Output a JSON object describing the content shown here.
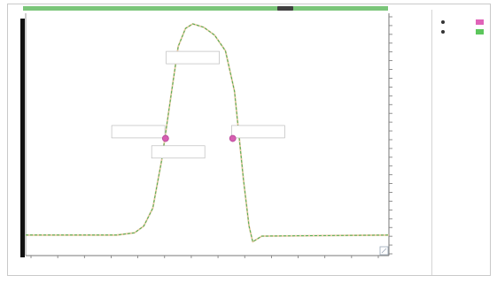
{
  "chart_data": {
    "type": "line",
    "title": "",
    "xlabel": "",
    "ylabel": "",
    "xlim": [
      0,
      1
    ],
    "ylim": [
      0,
      1
    ],
    "grid": false,
    "legend_position": "top-right",
    "series": [
      {
        "color": "#e7c9a3",
        "points": [
          [
            0,
            0.06
          ],
          [
            0.25,
            0.06
          ],
          [
            0.3,
            0.07
          ],
          [
            0.325,
            0.1
          ],
          [
            0.35,
            0.18
          ],
          [
            0.375,
            0.4
          ],
          [
            0.4,
            0.68
          ],
          [
            0.42,
            0.9
          ],
          [
            0.44,
            0.98
          ],
          [
            0.46,
            1.0
          ],
          [
            0.49,
            0.985
          ],
          [
            0.52,
            0.95
          ],
          [
            0.55,
            0.88
          ],
          [
            0.575,
            0.7
          ],
          [
            0.6,
            0.3
          ],
          [
            0.615,
            0.1
          ],
          [
            0.625,
            0.03
          ],
          [
            0.65,
            0.055
          ],
          [
            1,
            0.06
          ]
        ]
      },
      {
        "color": "#4caf50",
        "dashed": true,
        "points": [
          [
            0,
            0.06
          ],
          [
            0.25,
            0.06
          ],
          [
            0.3,
            0.07
          ],
          [
            0.325,
            0.1
          ],
          [
            0.35,
            0.18
          ],
          [
            0.375,
            0.4
          ],
          [
            0.4,
            0.68
          ],
          [
            0.42,
            0.9
          ],
          [
            0.44,
            0.98
          ],
          [
            0.46,
            1.0
          ],
          [
            0.49,
            0.985
          ],
          [
            0.52,
            0.95
          ],
          [
            0.55,
            0.88
          ],
          [
            0.575,
            0.7
          ],
          [
            0.6,
            0.3
          ],
          [
            0.615,
            0.1
          ],
          [
            0.625,
            0.03
          ],
          [
            0.65,
            0.055
          ],
          [
            1,
            0.06
          ]
        ]
      }
    ],
    "markers": [
      {
        "x": 0.385,
        "y": 0.49,
        "color": "#d65fb1"
      },
      {
        "x": 0.57,
        "y": 0.49,
        "color": "#d65fb1"
      }
    ],
    "x_tick_labels": [
      "",
      "",
      "",
      "",
      "",
      "",
      "",
      "",
      "",
      "",
      "",
      "",
      "",
      ""
    ],
    "y_tick_labels": [
      "",
      "",
      "",
      "",
      "",
      "",
      "",
      "",
      "",
      "",
      "",
      "",
      "",
      "",
      "",
      "",
      "",
      "",
      "",
      "",
      "",
      "",
      "",
      "",
      "",
      "",
      "",
      ""
    ],
    "annotations": [
      {
        "text": "",
        "x": 0.46,
        "y": 0.85
      },
      {
        "text": "",
        "x": 0.31,
        "y": 0.52
      },
      {
        "text": "",
        "x": 0.64,
        "y": 0.52
      },
      {
        "text": "",
        "x": 0.42,
        "y": 0.43
      }
    ]
  },
  "legend": {
    "items": [
      {
        "label": "",
        "color": "#e063b8"
      },
      {
        "label": "",
        "color": "#5cc65c"
      }
    ]
  },
  "colors": {
    "top_bar": "#7bc67a",
    "curve_base": "#e7c9a3",
    "curve_dash": "#4caf50",
    "marker": "#d65fb1",
    "left_bar": "#111111"
  }
}
